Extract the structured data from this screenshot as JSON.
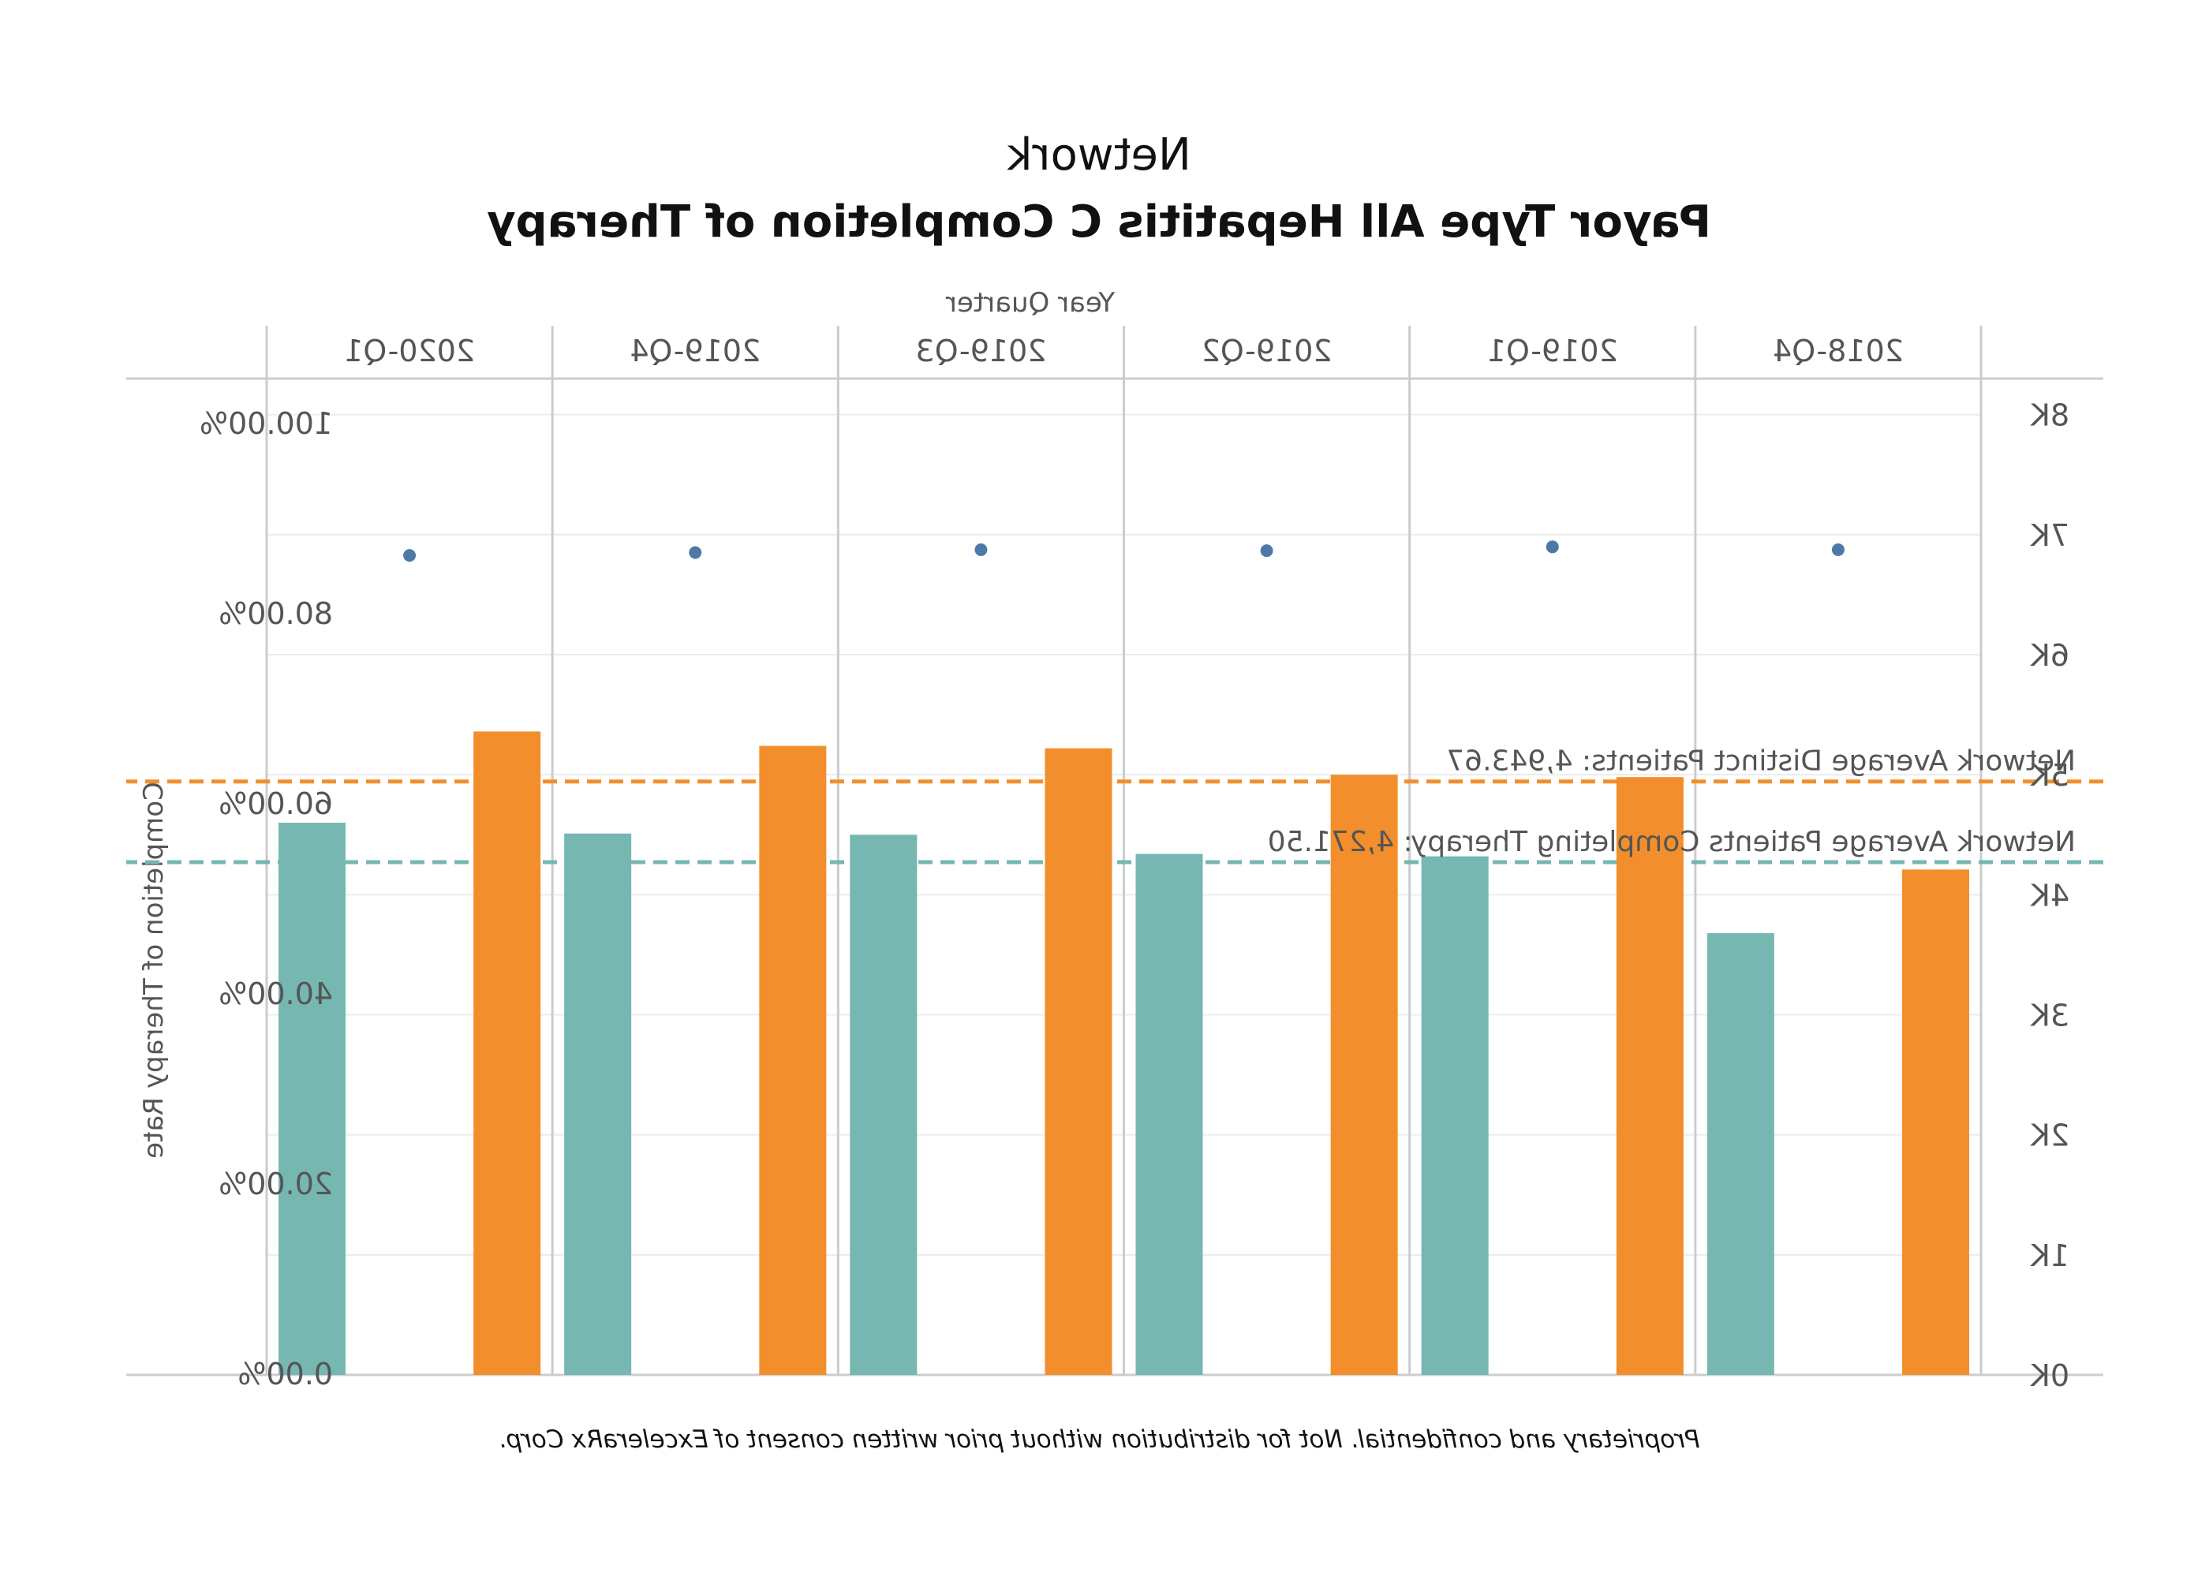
{
  "chart_data": {
    "type": "bar",
    "title": "Network",
    "subtitle": "Payor Type All Hepatitis C Completion of Therapy",
    "x_axis_title": "Year Quarter",
    "left_axis_label": "Completion of Therapy Rate",
    "right_axis_label": "",
    "categories": [
      "2018-Q4",
      "2019-Q1",
      "2019-Q2",
      "2019-Q3",
      "2019-Q4",
      "2020-Q1"
    ],
    "left_ticks": [
      "0.00%",
      "20.00%",
      "40.00%",
      "60.00%",
      "80.00%",
      "100.00%"
    ],
    "right_ticks": [
      "0K",
      "1K",
      "2K",
      "3K",
      "4K",
      "5K",
      "6K",
      "7K",
      "8K"
    ],
    "left_ylim": [
      0,
      100
    ],
    "right_ylim": [
      0,
      8300
    ],
    "series": [
      {
        "axis": "right",
        "kind": "bar",
        "color": "#F28E2B",
        "values": [
          4210,
          4980,
          5000,
          5220,
          5240,
          5360
        ]
      },
      {
        "axis": "right",
        "kind": "bar",
        "color": "#76B7B2",
        "values": [
          3680,
          4320,
          4340,
          4500,
          4510,
          4600
        ]
      },
      {
        "axis": "left",
        "kind": "point",
        "color": "#4E79A7",
        "values": [
          86.8,
          87.1,
          86.7,
          86.8,
          86.5,
          86.2
        ]
      }
    ],
    "reference_lines": [
      {
        "label": "Network Average Distinct Patients: 4,943.67",
        "value": 4943.67,
        "axis": "right",
        "color": "#F28E2B"
      },
      {
        "label": "Network Average Patients Completing Therapy: 4,271.50",
        "value": 4271.5,
        "axis": "right",
        "color": "#76B7B2"
      }
    ],
    "grid": true,
    "legend": "none"
  },
  "footer": {
    "text": "Proprietary and confidential. Not for distribution without prior written consent of ExceleraRx Corp."
  }
}
